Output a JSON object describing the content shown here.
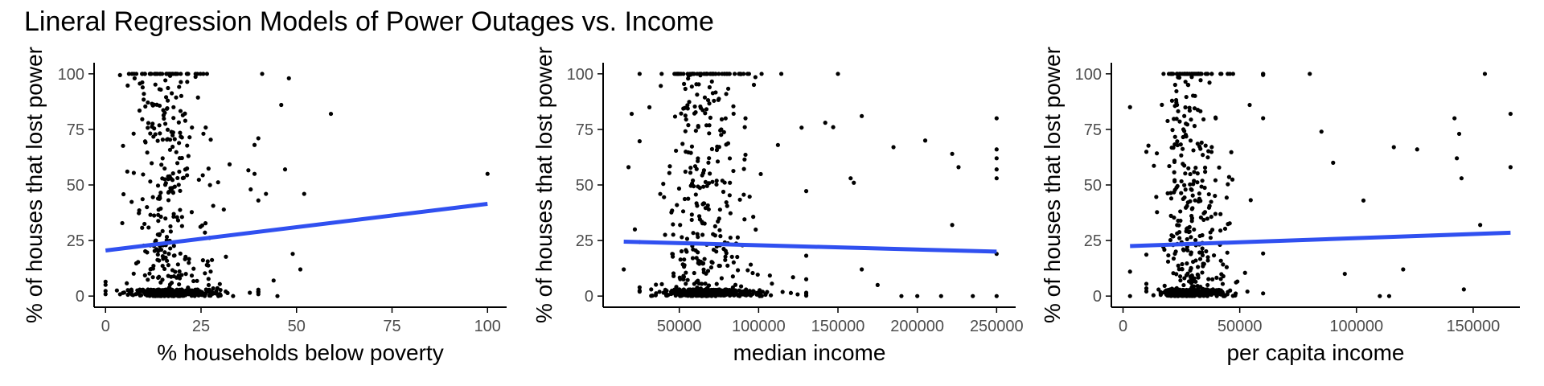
{
  "title": "Lineral Regression Models of Power Outages vs. Income",
  "colors": {
    "points": "#000000",
    "fit_line": "#3050f0",
    "axis": "#000000",
    "tick_text": "#4d4d4d"
  },
  "chart_data": [
    {
      "type": "scatter",
      "xlabel": "% households below poverty",
      "ylabel": "% of houses that lost power",
      "xlim": [
        -3,
        105
      ],
      "ylim": [
        -5,
        105
      ],
      "xticks": [
        0,
        25,
        50,
        75,
        100
      ],
      "xtick_labels": [
        "0",
        "25",
        "50",
        "75",
        "100"
      ],
      "yticks": [
        0,
        25,
        50,
        75,
        100
      ],
      "ytick_labels": [
        "0",
        "25",
        "50",
        "75",
        "100"
      ],
      "grid": false,
      "fit_line": {
        "x": [
          0,
          100
        ],
        "y": [
          20.5,
          41.5
        ]
      },
      "cluster": {
        "x_range": [
          0,
          40
        ],
        "x_mode": 12,
        "y_zero_share": 0.45,
        "y_hundred_share": 0.07
      },
      "points": [
        {
          "x": 100,
          "y": 55
        },
        {
          "x": 59,
          "y": 82
        },
        {
          "x": 52,
          "y": 46
        },
        {
          "x": 51,
          "y": 12
        },
        {
          "x": 48,
          "y": 98
        },
        {
          "x": 47,
          "y": 57
        },
        {
          "x": 46,
          "y": 86
        },
        {
          "x": 45,
          "y": 0
        },
        {
          "x": 42,
          "y": 46
        },
        {
          "x": 41,
          "y": 100
        },
        {
          "x": 40,
          "y": 71
        },
        {
          "x": 39,
          "y": 68
        },
        {
          "x": 49,
          "y": 19
        },
        {
          "x": 44,
          "y": 7
        },
        {
          "x": 39,
          "y": 55
        },
        {
          "x": 38,
          "y": 48
        }
      ]
    },
    {
      "type": "scatter",
      "xlabel": "median income",
      "ylabel": "% of houses that lost power",
      "xlim": [
        2000,
        262000
      ],
      "ylim": [
        -5,
        105
      ],
      "xticks": [
        50000,
        100000,
        150000,
        200000,
        250000
      ],
      "xtick_labels": [
        "50000",
        "100000",
        "150000",
        "200000",
        "250000"
      ],
      "yticks": [
        0,
        25,
        50,
        75,
        100
      ],
      "ytick_labels": [
        "0",
        "25",
        "50",
        "75",
        "100"
      ],
      "grid": false,
      "fit_line": {
        "x": [
          15000,
          250000
        ],
        "y": [
          24.5,
          20.0
        ]
      },
      "cluster": {
        "x_range": [
          25000,
          130000
        ],
        "x_mode": 55000,
        "y_zero_share": 0.45,
        "y_hundred_share": 0.07
      },
      "points": [
        {
          "x": 250000,
          "y": 80
        },
        {
          "x": 250000,
          "y": 66
        },
        {
          "x": 250000,
          "y": 62
        },
        {
          "x": 250000,
          "y": 57
        },
        {
          "x": 250000,
          "y": 53
        },
        {
          "x": 250000,
          "y": 19
        },
        {
          "x": 250000,
          "y": 0
        },
        {
          "x": 205000,
          "y": 70
        },
        {
          "x": 222000,
          "y": 64
        },
        {
          "x": 226000,
          "y": 58
        },
        {
          "x": 222000,
          "y": 32
        },
        {
          "x": 185000,
          "y": 67
        },
        {
          "x": 165000,
          "y": 81
        },
        {
          "x": 158000,
          "y": 53
        },
        {
          "x": 150000,
          "y": 100
        },
        {
          "x": 147000,
          "y": 76
        },
        {
          "x": 142000,
          "y": 78
        },
        {
          "x": 160000,
          "y": 51
        },
        {
          "x": 165000,
          "y": 12
        },
        {
          "x": 175000,
          "y": 5
        },
        {
          "x": 190000,
          "y": 0
        },
        {
          "x": 200000,
          "y": 0
        },
        {
          "x": 215000,
          "y": 0
        },
        {
          "x": 235000,
          "y": 0
        },
        {
          "x": 15000,
          "y": 12
        },
        {
          "x": 18000,
          "y": 58
        },
        {
          "x": 20000,
          "y": 82
        },
        {
          "x": 22000,
          "y": 30
        }
      ]
    },
    {
      "type": "scatter",
      "xlabel": "per capita income",
      "ylabel": "% of houses that lost power",
      "xlim": [
        -5000,
        170000
      ],
      "ylim": [
        -5,
        105
      ],
      "xticks": [
        0,
        50000,
        100000,
        150000
      ],
      "xtick_labels": [
        "0",
        "50000",
        "100000",
        "150000"
      ],
      "yticks": [
        0,
        25,
        50,
        75,
        100
      ],
      "ytick_labels": [
        "0",
        "25",
        "50",
        "75",
        "100"
      ],
      "grid": false,
      "fit_line": {
        "x": [
          3000,
          166000
        ],
        "y": [
          22.5,
          28.5
        ]
      },
      "cluster": {
        "x_range": [
          10000,
          60000
        ],
        "x_mode": 22000,
        "y_zero_share": 0.45,
        "y_hundred_share": 0.07
      },
      "points": [
        {
          "x": 155000,
          "y": 100
        },
        {
          "x": 166000,
          "y": 82
        },
        {
          "x": 166000,
          "y": 58
        },
        {
          "x": 144000,
          "y": 73
        },
        {
          "x": 142000,
          "y": 80
        },
        {
          "x": 143000,
          "y": 62
        },
        {
          "x": 145000,
          "y": 53
        },
        {
          "x": 153000,
          "y": 32
        },
        {
          "x": 146000,
          "y": 3
        },
        {
          "x": 126000,
          "y": 66
        },
        {
          "x": 116000,
          "y": 67
        },
        {
          "x": 103000,
          "y": 43
        },
        {
          "x": 120000,
          "y": 12
        },
        {
          "x": 114000,
          "y": 0
        },
        {
          "x": 110000,
          "y": 0
        },
        {
          "x": 3000,
          "y": 85
        },
        {
          "x": 3000,
          "y": 11
        },
        {
          "x": 3000,
          "y": 0
        },
        {
          "x": 80000,
          "y": 100
        },
        {
          "x": 85000,
          "y": 74
        },
        {
          "x": 90000,
          "y": 60
        },
        {
          "x": 95000,
          "y": 10
        }
      ]
    }
  ]
}
